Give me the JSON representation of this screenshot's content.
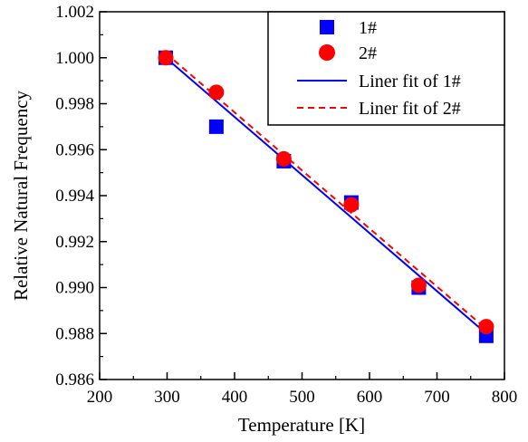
{
  "chart_data": {
    "type": "scatter",
    "xlabel": "Temperature [K]",
    "ylabel": "Relative Natural Frequency",
    "xlim": [
      200,
      800
    ],
    "ylim": [
      0.986,
      1.002
    ],
    "x_ticks": [
      "200",
      "300",
      "400",
      "500",
      "600",
      "700",
      "800"
    ],
    "y_ticks": [
      "0.986",
      "0.988",
      "0.990",
      "0.992",
      "0.994",
      "0.996",
      "0.998",
      "1.000",
      "1.002"
    ],
    "grid": false,
    "legend_position": "top-right",
    "series": [
      {
        "name": "1#",
        "marker": "square",
        "color": "#0000ff",
        "points": [
          {
            "x": 298,
            "y": 1.0
          },
          {
            "x": 373,
            "y": 0.997
          },
          {
            "x": 473,
            "y": 0.9955
          },
          {
            "x": 573,
            "y": 0.9937
          },
          {
            "x": 673,
            "y": 0.99
          },
          {
            "x": 773,
            "y": 0.9879
          }
        ]
      },
      {
        "name": "2#",
        "marker": "circle",
        "color": "#ff0000",
        "points": [
          {
            "x": 298,
            "y": 1.0
          },
          {
            "x": 373,
            "y": 0.9985
          },
          {
            "x": 473,
            "y": 0.9956
          },
          {
            "x": 573,
            "y": 0.9936
          },
          {
            "x": 673,
            "y": 0.9901
          },
          {
            "x": 773,
            "y": 0.9883
          }
        ]
      }
    ],
    "fits": [
      {
        "name": "Liner fit of 1#",
        "style": "solid",
        "color": "#0000ff",
        "start": {
          "x": 298,
          "y": 1.0
        },
        "end": {
          "x": 773,
          "y": 0.988
        }
      },
      {
        "name": "Liner fit of 2#",
        "style": "dashed",
        "color": "#ff0000",
        "start": {
          "x": 298,
          "y": 1.0002
        },
        "end": {
          "x": 773,
          "y": 0.9882
        }
      }
    ]
  }
}
